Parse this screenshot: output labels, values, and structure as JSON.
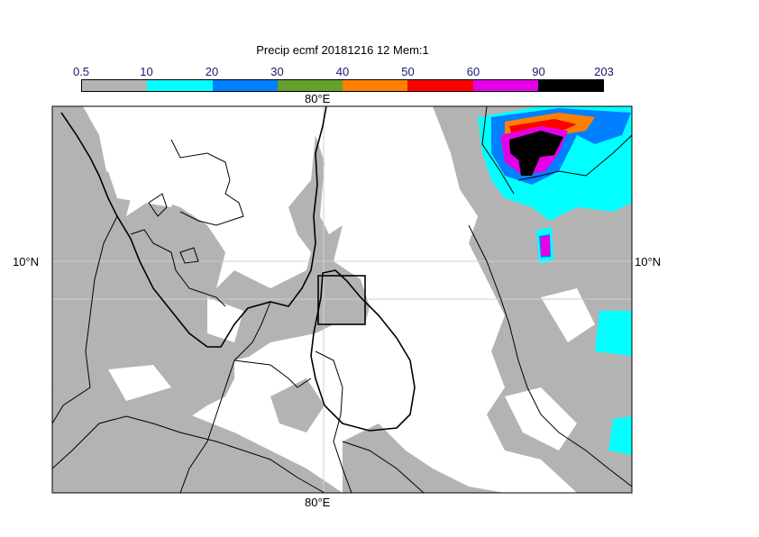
{
  "title": "Precip ecmf 20181216 12 Mem:1",
  "colorbar": {
    "labels": [
      "0.5",
      "10",
      "20",
      "30",
      "40",
      "50",
      "60",
      "90",
      "203"
    ],
    "colors": [
      "#b3b3b3",
      "#00ffff",
      "#0080ff",
      "#66a02c",
      "#ff8000",
      "#ff0000",
      "#e600e6",
      "#000000"
    ]
  },
  "axes": {
    "lon_top": "80°E",
    "lon_bottom": "80°E",
    "lat_left": "10°N",
    "lat_right": "10°N"
  },
  "colors": {
    "land_outline": "#000000",
    "grid": "#cfcfcf",
    "sea_bg": "#ffffff"
  }
}
